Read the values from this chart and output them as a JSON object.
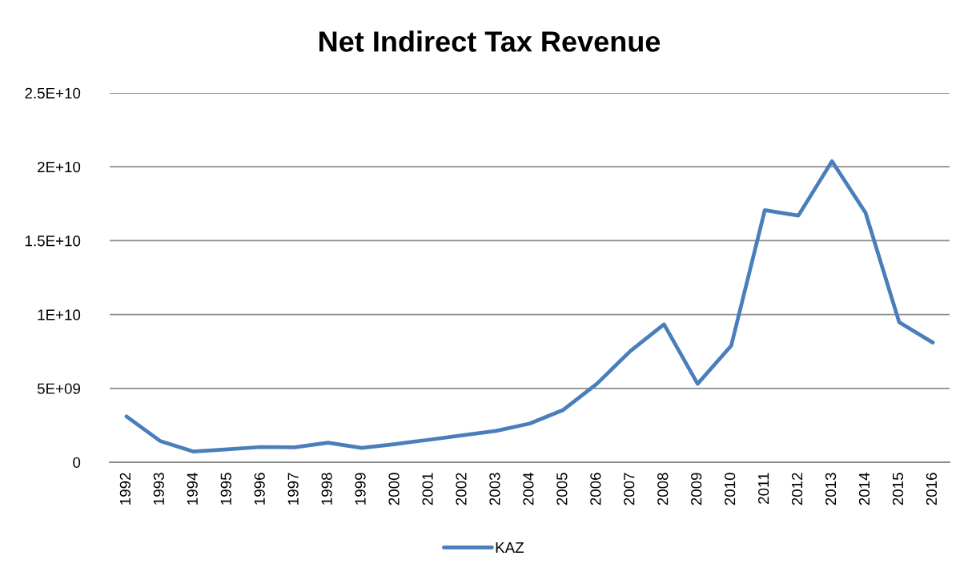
{
  "chart_data": {
    "type": "line",
    "title": "Net Indirect Tax Revenue",
    "categories": [
      "1992",
      "1993",
      "1994",
      "1995",
      "1996",
      "1997",
      "1998",
      "1999",
      "2000",
      "2001",
      "2002",
      "2003",
      "2004",
      "2005",
      "2006",
      "2007",
      "2008",
      "2009",
      "2010",
      "2011",
      "2012",
      "2013",
      "2014",
      "2015",
      "2016"
    ],
    "series": [
      {
        "name": "KAZ",
        "color": "#4a7ebb",
        "values": [
          3100000000,
          1440000000,
          720000000,
          880000000,
          1030000000,
          1010000000,
          1320000000,
          970000000,
          1230000000,
          1520000000,
          1820000000,
          2120000000,
          2620000000,
          3540000000,
          5310000000,
          7530000000,
          9330000000,
          5310000000,
          7890000000,
          17060000000,
          16700000000,
          20380000000,
          16880000000,
          9480000000,
          8100000000
        ]
      }
    ],
    "ylim": [
      0,
      25000000000
    ],
    "yticks": [
      0,
      {
        "value": 5000000000,
        "label": "5E+09"
      },
      {
        "value": 10000000000,
        "label": "1E+10"
      },
      {
        "value": 15000000000,
        "label": "1.5E+10"
      },
      {
        "value": 20000000000,
        "label": "2E+10"
      },
      {
        "value": 25000000000,
        "label": "2.5E+10"
      }
    ],
    "grid": "y",
    "legend": "bottom",
    "line_style": "solid"
  }
}
